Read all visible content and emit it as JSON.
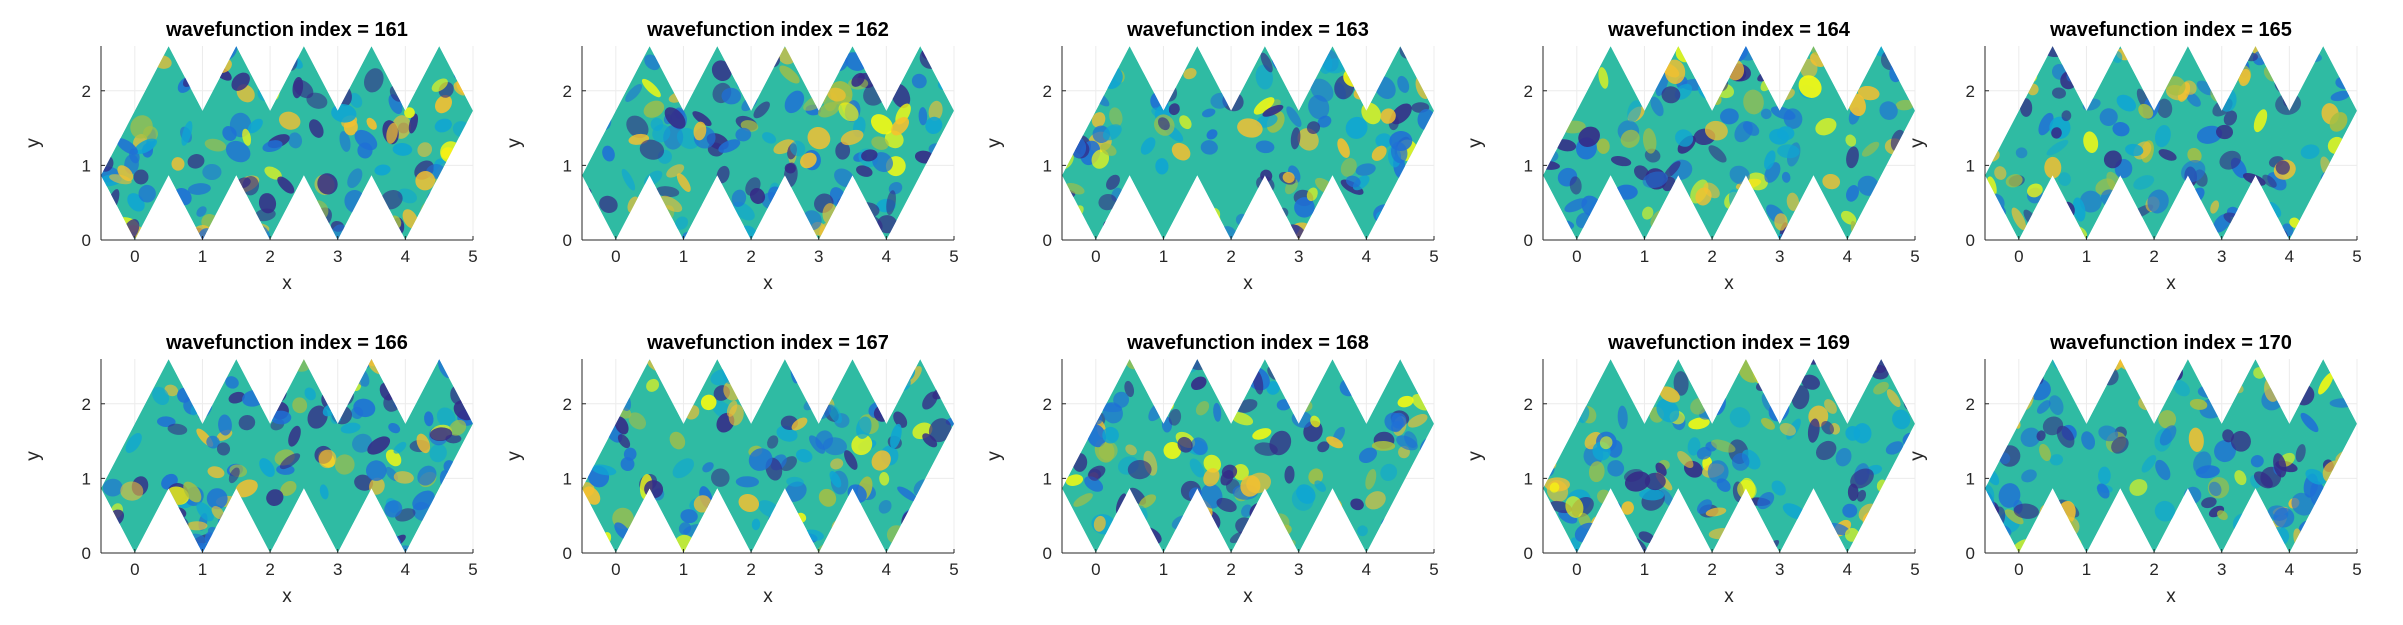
{
  "chart_data": {
    "type": "heatmap",
    "layout": {
      "rows": 2,
      "columns": 5
    },
    "colormap": [
      "#352a87",
      "#1f6fd6",
      "#0fa5d3",
      "#2fbba3",
      "#a7bf42",
      "#f6c02f",
      "#f9fb0e"
    ],
    "fill_color": "#2fbba3",
    "grid": true,
    "xlabel": "x",
    "ylabel": "y",
    "xlim": [
      -0.5,
      5
    ],
    "ylim": [
      0,
      2.6
    ],
    "xticks": [
      "0",
      "1",
      "2",
      "3",
      "4",
      "5"
    ],
    "yticks": [
      "0",
      "1",
      "2"
    ],
    "domain_polygon": [
      [
        -0.5,
        0.866
      ],
      [
        0,
        0
      ],
      [
        0.5,
        0.866
      ],
      [
        1,
        0
      ],
      [
        1.5,
        0.866
      ],
      [
        2,
        0
      ],
      [
        2.5,
        0.866
      ],
      [
        3,
        0
      ],
      [
        3.5,
        0.866
      ],
      [
        4,
        0
      ],
      [
        4.5,
        0.866
      ],
      [
        5,
        1.732
      ],
      [
        4.5,
        2.598
      ],
      [
        4,
        1.732
      ],
      [
        3.5,
        2.598
      ],
      [
        3,
        1.732
      ],
      [
        2.5,
        2.598
      ],
      [
        2,
        1.732
      ],
      [
        1.5,
        2.598
      ],
      [
        1,
        1.732
      ],
      [
        0.5,
        2.598
      ]
    ],
    "panels": [
      {
        "title": "wavefunction index = 161",
        "index": 161
      },
      {
        "title": "wavefunction index = 162",
        "index": 162
      },
      {
        "title": "wavefunction index = 163",
        "index": 163
      },
      {
        "title": "wavefunction index = 164",
        "index": 164
      },
      {
        "title": "wavefunction index = 165",
        "index": 165
      },
      {
        "title": "wavefunction index = 166",
        "index": 166
      },
      {
        "title": "wavefunction index = 167",
        "index": 167
      },
      {
        "title": "wavefunction index = 168",
        "index": 168
      },
      {
        "title": "wavefunction index = 169",
        "index": 169
      },
      {
        "title": "wavefunction index = 170",
        "index": 170
      }
    ]
  }
}
